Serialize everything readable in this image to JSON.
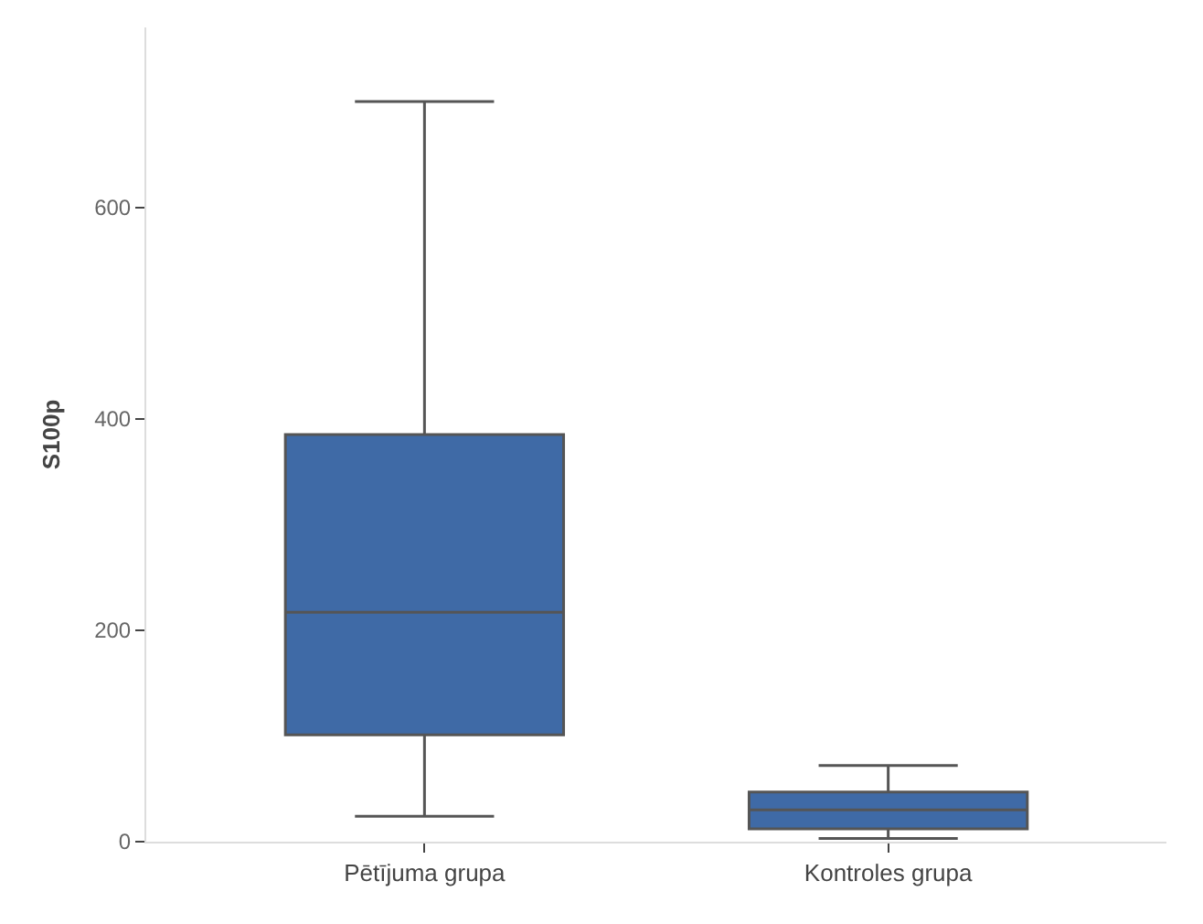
{
  "chart_data": {
    "type": "box",
    "ylabel": "S100p",
    "categories": [
      "Pētījuma grupa",
      "Kontroles grupa"
    ],
    "series": [
      {
        "color": "#3f6aa6",
        "boxes": [
          {
            "low": 24,
            "q1": 101,
            "median": 217,
            "q3": 385,
            "high": 700
          },
          {
            "low": 3,
            "q1": 12,
            "median": 30,
            "q3": 47,
            "high": 72
          }
        ]
      }
    ],
    "ylim": [
      0,
      770
    ],
    "yticks": [
      0,
      200,
      400,
      600
    ]
  }
}
